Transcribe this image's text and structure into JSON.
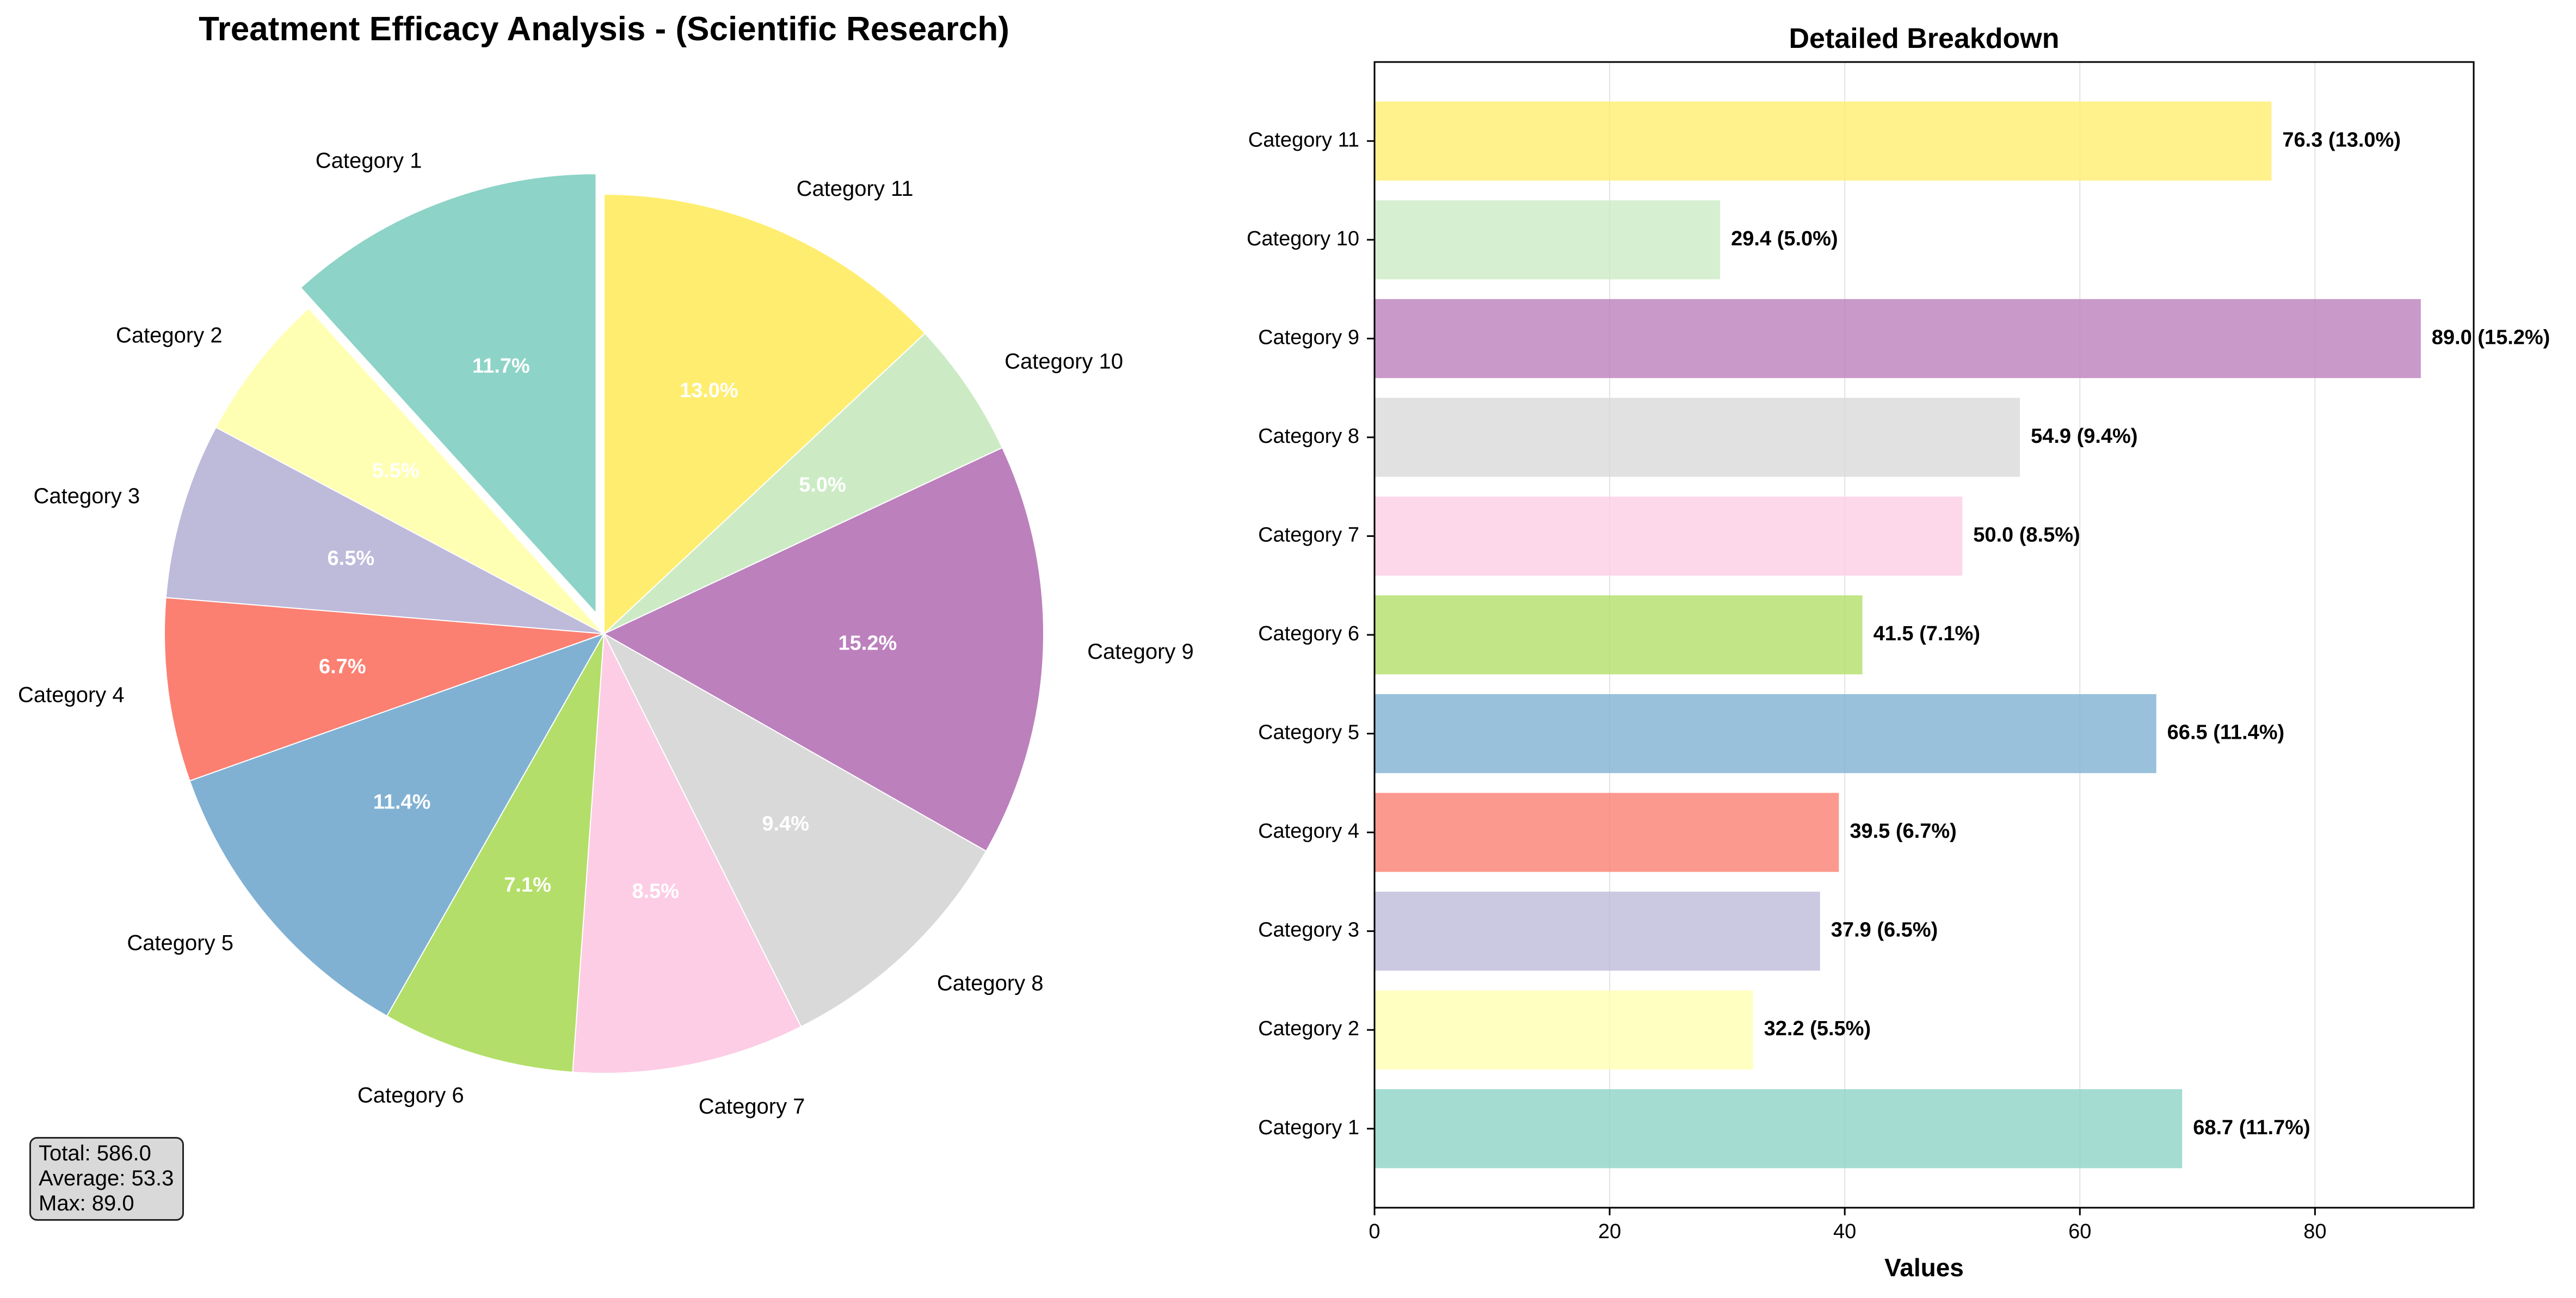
{
  "chart_data": [
    {
      "type": "pie",
      "title": "Treatment Efficacy Analysis - (Scientific Research)",
      "categories": [
        "Category 1",
        "Category 2",
        "Category 3",
        "Category 4",
        "Category 5",
        "Category 6",
        "Category 7",
        "Category 8",
        "Category 9",
        "Category 10",
        "Category 11"
      ],
      "values": [
        68.7,
        32.2,
        37.9,
        39.5,
        66.5,
        41.5,
        50.0,
        54.9,
        89.0,
        29.4,
        76.3
      ],
      "percent_labels": [
        "11.7%",
        "5.5%",
        "6.5%",
        "6.7%",
        "11.4%",
        "7.1%",
        "8.5%",
        "9.4%",
        "15.2%",
        "5.0%",
        "13.0%"
      ],
      "colors": [
        "#8dd3c7",
        "#ffffb3",
        "#bebada",
        "#fb8072",
        "#80b1d3",
        "#b3de69",
        "#fccde5",
        "#d9d9d9",
        "#bc80bd",
        "#ccebc5",
        "#ffed6f"
      ],
      "start_angle_deg": 90,
      "direction": "counterclockwise",
      "exploded": [
        "Category 1"
      ],
      "stats": {
        "total": "Total: 586.0",
        "average": "Average: 53.3",
        "max": "Max: 89.0"
      }
    },
    {
      "type": "bar",
      "orientation": "horizontal",
      "title": "Detailed Breakdown",
      "xlabel": "Values",
      "ylabel": "",
      "xlim": [
        0,
        93.5
      ],
      "xticks": [
        0,
        20,
        40,
        60,
        80
      ],
      "grid": "vertical",
      "categories": [
        "Category 1",
        "Category 2",
        "Category 3",
        "Category 4",
        "Category 5",
        "Category 6",
        "Category 7",
        "Category 8",
        "Category 9",
        "Category 10",
        "Category 11"
      ],
      "values": [
        68.7,
        32.2,
        37.9,
        39.5,
        66.5,
        41.5,
        50.0,
        54.9,
        89.0,
        29.4,
        76.3
      ],
      "value_labels": [
        "68.7 (11.7%)",
        "32.2 (5.5%)",
        "37.9 (6.5%)",
        "39.5 (6.7%)",
        "66.5 (11.4%)",
        "41.5 (7.1%)",
        "50.0 (8.5%)",
        "54.9 (9.4%)",
        "89.0 (15.2%)",
        "29.4 (5.0%)",
        "76.3 (13.0%)"
      ],
      "colors": [
        "#8dd3c7",
        "#ffffb3",
        "#bebada",
        "#fb8072",
        "#80b1d3",
        "#b3de69",
        "#fccde5",
        "#d9d9d9",
        "#bc80bd",
        "#ccebc5",
        "#ffed6f"
      ],
      "bar_alpha": 0.8
    }
  ]
}
